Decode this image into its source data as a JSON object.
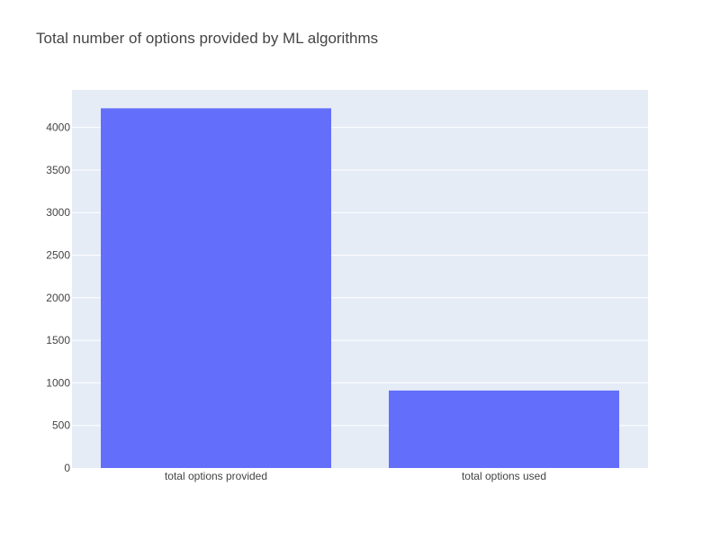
{
  "chart_data": {
    "type": "bar",
    "title": "Total number of options provided by ML algorithms",
    "categories": [
      "total options provided",
      "total options used"
    ],
    "values": [
      4225,
      910
    ],
    "xlabel": "",
    "ylabel": "",
    "ylim": [
      0,
      4440
    ],
    "yticks": [
      0,
      500,
      1000,
      1500,
      2000,
      2500,
      3000,
      3500,
      4000
    ],
    "ytick_labels": [
      "0",
      "500",
      "1000",
      "1500",
      "2000",
      "2500",
      "3000",
      "3500",
      "4000"
    ],
    "grid": true,
    "legend": "none",
    "colors": {
      "bar": "#636efa",
      "plot_background": "#e5ecf6",
      "gridline": "#ffffff",
      "text": "#444444"
    }
  }
}
